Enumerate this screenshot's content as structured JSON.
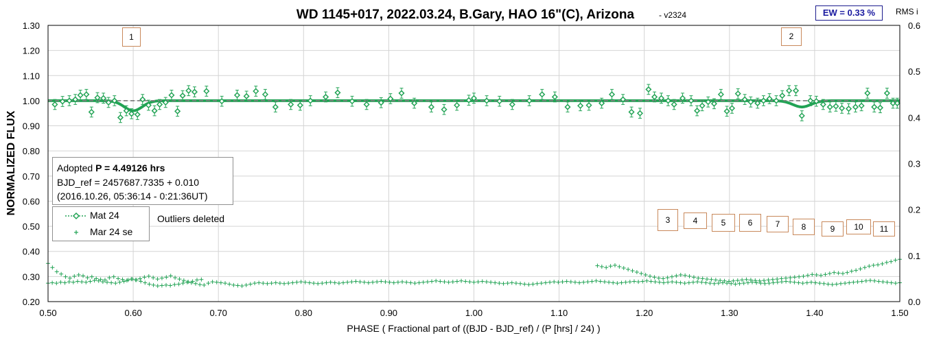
{
  "chart_data": {
    "type": "scatter",
    "title": "WD 1145+017, 2022.03.24, B.Gary, HAO 16\"(C), Arizona",
    "version": "- v2324",
    "ew_label": "EW = 0.33 %",
    "rms_label": "RMS i",
    "xlabel": "PHASE ( Fractional part of ((BJD - BJD_ref) / (P [hrs] / 24) )",
    "ylabel": "NORMALIZED FLUX",
    "xlim": [
      0.5,
      1.5
    ],
    "ylim": [
      0.2,
      1.3
    ],
    "y2lim": [
      0.0,
      0.6
    ],
    "x_ticks": [
      "0.50",
      "0.60",
      "0.70",
      "0.80",
      "0.90",
      "1.00",
      "1.10",
      "1.20",
      "1.30",
      "1.40",
      "1.50"
    ],
    "y_ticks": [
      "0.20",
      "0.30",
      "0.40",
      "0.50",
      "0.60",
      "0.70",
      "0.80",
      "0.90",
      "1.00",
      "1.10",
      "1.20",
      "1.30"
    ],
    "y2_ticks": [
      "0.0",
      "0.1",
      "0.2",
      "0.3",
      "0.4",
      "0.5",
      "0.6"
    ],
    "grid": true,
    "info_box": {
      "line1_prefix": "Adopted ",
      "line1_bold": "P = 4.49126 hrs",
      "line2": "BJD_ref = 2457687.7335 + 0.010",
      "line3": "(2016.10.26, 05:36:14 - 0:21:36UT)"
    },
    "legend": [
      {
        "label": "Mat 24",
        "symbol": "dotted-diamond"
      },
      {
        "label": "Mar 24 se",
        "symbol": "plus"
      }
    ],
    "annotation": "Outliers deleted",
    "component_markers": [
      "1",
      "2",
      "3",
      "4",
      "5",
      "6",
      "7",
      "8",
      "9",
      "10",
      "11"
    ],
    "series": [
      {
        "name": "Mat 24",
        "style": "diamond-errorbar",
        "color": "#22a355",
        "error": 0.02,
        "points": [
          [
            0.508,
            0.985
          ],
          [
            0.517,
            0.997
          ],
          [
            0.525,
            1.0
          ],
          [
            0.532,
            1.005
          ],
          [
            0.538,
            1.022
          ],
          [
            0.545,
            1.025
          ],
          [
            0.551,
            0.955
          ],
          [
            0.558,
            1.012
          ],
          [
            0.565,
            1.01
          ],
          [
            0.571,
            0.993
          ],
          [
            0.578,
            1.0
          ],
          [
            0.585,
            0.933
          ],
          [
            0.592,
            0.96
          ],
          [
            0.598,
            0.948
          ],
          [
            0.605,
            0.945
          ],
          [
            0.611,
            1.005
          ],
          [
            0.618,
            0.982
          ],
          [
            0.625,
            0.96
          ],
          [
            0.631,
            0.985
          ],
          [
            0.638,
            0.993
          ],
          [
            0.645,
            1.022
          ],
          [
            0.652,
            0.958
          ],
          [
            0.658,
            1.02
          ],
          [
            0.665,
            1.04
          ],
          [
            0.672,
            1.035
          ],
          [
            0.686,
            1.038
          ],
          [
            0.704,
            0.998
          ],
          [
            0.722,
            1.022
          ],
          [
            0.733,
            1.018
          ],
          [
            0.744,
            1.038
          ],
          [
            0.755,
            1.025
          ],
          [
            0.767,
            0.975
          ],
          [
            0.785,
            0.985
          ],
          [
            0.796,
            0.982
          ],
          [
            0.808,
            1.0
          ],
          [
            0.826,
            1.015
          ],
          [
            0.84,
            1.032
          ],
          [
            0.857,
            0.998
          ],
          [
            0.874,
            0.985
          ],
          [
            0.891,
            0.992
          ],
          [
            0.902,
            1.008
          ],
          [
            0.915,
            1.03
          ],
          [
            0.93,
            0.99
          ],
          [
            0.95,
            0.975
          ],
          [
            0.965,
            0.965
          ],
          [
            0.98,
            0.982
          ],
          [
            0.994,
            1.002
          ],
          [
            1.0,
            1.01
          ],
          [
            1.015,
            1.0
          ],
          [
            1.03,
            0.998
          ],
          [
            1.045,
            0.985
          ],
          [
            1.065,
            1.0
          ],
          [
            1.08,
            1.025
          ],
          [
            1.095,
            1.015
          ],
          [
            1.11,
            0.975
          ],
          [
            1.125,
            0.98
          ],
          [
            1.135,
            0.982
          ],
          [
            1.15,
            0.99
          ],
          [
            1.162,
            1.025
          ],
          [
            1.175,
            1.005
          ],
          [
            1.185,
            0.955
          ],
          [
            1.195,
            0.95
          ],
          [
            1.205,
            1.045
          ],
          [
            1.212,
            1.015
          ],
          [
            1.22,
            1.01
          ],
          [
            1.228,
            1.0
          ],
          [
            1.235,
            0.985
          ],
          [
            1.245,
            1.01
          ],
          [
            1.255,
            1.0
          ],
          [
            1.262,
            0.96
          ],
          [
            1.268,
            0.98
          ],
          [
            1.275,
            0.995
          ],
          [
            1.282,
            0.988
          ],
          [
            1.29,
            1.025
          ],
          [
            1.297,
            0.958
          ],
          [
            1.303,
            0.97
          ],
          [
            1.31,
            1.028
          ],
          [
            1.318,
            1.005
          ],
          [
            1.325,
            0.995
          ],
          [
            1.333,
            0.99
          ],
          [
            1.34,
            1.0
          ],
          [
            1.347,
            1.008
          ],
          [
            1.355,
            1.0
          ],
          [
            1.362,
            1.02
          ],
          [
            1.37,
            1.04
          ],
          [
            1.378,
            1.04
          ],
          [
            1.385,
            0.94
          ],
          [
            1.395,
            1.0
          ],
          [
            1.402,
            0.998
          ],
          [
            1.41,
            0.985
          ],
          [
            1.418,
            0.975
          ],
          [
            1.425,
            0.978
          ],
          [
            1.432,
            0.97
          ],
          [
            1.44,
            0.968
          ],
          [
            1.448,
            0.975
          ],
          [
            1.455,
            0.98
          ],
          [
            1.462,
            1.03
          ],
          [
            1.47,
            0.975
          ],
          [
            1.477,
            0.972
          ],
          [
            1.485,
            1.03
          ],
          [
            1.492,
            0.99
          ],
          [
            1.497,
            0.99
          ]
        ]
      },
      {
        "name": "Mar 24 se",
        "style": "plus",
        "color": "#22a355",
        "axis": "right",
        "segments": [
          {
            "x_start": 0.5,
            "x_end": 0.68,
            "values": [
              0.083,
              0.074,
              0.065,
              0.06,
              0.054,
              0.051,
              0.055,
              0.058,
              0.056,
              0.052,
              0.054,
              0.05,
              0.048,
              0.047,
              0.052,
              0.054,
              0.05,
              0.048,
              0.046,
              0.049,
              0.047,
              0.05,
              0.053,
              0.055,
              0.052,
              0.049,
              0.051,
              0.053,
              0.056,
              0.052,
              0.049,
              0.046,
              0.043,
              0.044,
              0.047,
              0.048
            ]
          },
          {
            "x_start": 0.5,
            "x_end": 1.5,
            "values": [
              0.04,
              0.041,
              0.04,
              0.042,
              0.041,
              0.043,
              0.042,
              0.044,
              0.043,
              0.042,
              0.044,
              0.046,
              0.045,
              0.043,
              0.042,
              0.041,
              0.04,
              0.042,
              0.044,
              0.047,
              0.049,
              0.047,
              0.044,
              0.041,
              0.038,
              0.036,
              0.034,
              0.035,
              0.036,
              0.035,
              0.037,
              0.038,
              0.04,
              0.042,
              0.041,
              0.039,
              0.037,
              0.036,
              0.04,
              0.043,
              0.042,
              0.041,
              0.04,
              0.038,
              0.036,
              0.035,
              0.034,
              0.036,
              0.038,
              0.04,
              0.041,
              0.04,
              0.039,
              0.04,
              0.041,
              0.04,
              0.039,
              0.04,
              0.041,
              0.042,
              0.043,
              0.042,
              0.041,
              0.04,
              0.039,
              0.04,
              0.041,
              0.042,
              0.041,
              0.04,
              0.041,
              0.042,
              0.043,
              0.044,
              0.043,
              0.042,
              0.041,
              0.042,
              0.043,
              0.044,
              0.043,
              0.042,
              0.041,
              0.042,
              0.043,
              0.042,
              0.041,
              0.04,
              0.041,
              0.042,
              0.043,
              0.044,
              0.045,
              0.044,
              0.043,
              0.042,
              0.043,
              0.044,
              0.045,
              0.044,
              0.043,
              0.042,
              0.043,
              0.044,
              0.043,
              0.042,
              0.041,
              0.04,
              0.039,
              0.04,
              0.041,
              0.04,
              0.039,
              0.038,
              0.037,
              0.038,
              0.039,
              0.04,
              0.041,
              0.042,
              0.043,
              0.042,
              0.043,
              0.044,
              0.043,
              0.042,
              0.041,
              0.042,
              0.043,
              0.044,
              0.045,
              0.044,
              0.043,
              0.042,
              0.041,
              0.04,
              0.041,
              0.042,
              0.043,
              0.044,
              0.043,
              0.044,
              0.045,
              0.044,
              0.043,
              0.042,
              0.041,
              0.042,
              0.043,
              0.042,
              0.041,
              0.04,
              0.041,
              0.042,
              0.043,
              0.042,
              0.041,
              0.04,
              0.039,
              0.04,
              0.041,
              0.04,
              0.039,
              0.038,
              0.039,
              0.04,
              0.041,
              0.042,
              0.041,
              0.04,
              0.039,
              0.04,
              0.041,
              0.042,
              0.043,
              0.044,
              0.043,
              0.042,
              0.041,
              0.04,
              0.041,
              0.042,
              0.041,
              0.04,
              0.039,
              0.038,
              0.037,
              0.038,
              0.039,
              0.04,
              0.041,
              0.042,
              0.043,
              0.044,
              0.045,
              0.046,
              0.045,
              0.044,
              0.043,
              0.042,
              0.041,
              0.04,
              0.041
            ]
          },
          {
            "x_start": 1.145,
            "x_end": 1.5,
            "values": [
              0.078,
              0.076,
              0.074,
              0.077,
              0.079,
              0.076,
              0.073,
              0.07,
              0.067,
              0.064,
              0.061,
              0.058,
              0.055,
              0.053,
              0.051,
              0.05,
              0.052,
              0.054,
              0.056,
              0.058,
              0.057,
              0.055,
              0.053,
              0.051,
              0.05,
              0.049,
              0.048,
              0.047,
              0.046,
              0.045,
              0.044,
              0.045,
              0.046,
              0.047,
              0.048,
              0.047,
              0.046,
              0.045,
              0.046,
              0.047,
              0.048,
              0.049,
              0.05,
              0.051,
              0.052,
              0.053,
              0.054,
              0.055,
              0.057,
              0.059,
              0.058,
              0.057,
              0.059,
              0.061,
              0.063,
              0.062,
              0.061,
              0.063,
              0.066,
              0.068,
              0.071,
              0.074,
              0.077,
              0.079,
              0.08,
              0.082,
              0.085,
              0.087,
              0.09,
              0.092
            ]
          }
        ]
      },
      {
        "name": "",
        "style": "model-line",
        "color": "#22a355",
        "baseline": 1.0,
        "dips": [
          {
            "center": 0.6,
            "depth": 0.04,
            "width": 0.03
          },
          {
            "center": 1.385,
            "depth": 0.025,
            "width": 0.03
          }
        ]
      }
    ]
  }
}
